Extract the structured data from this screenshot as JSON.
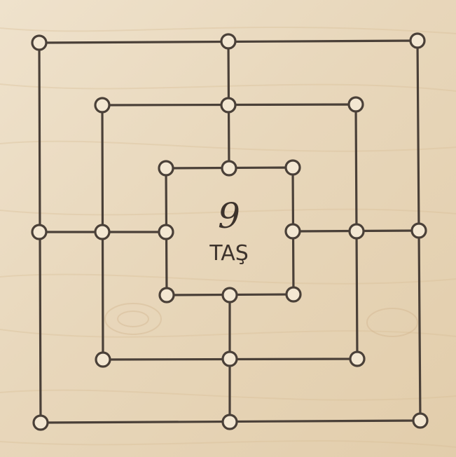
{
  "game": {
    "title_number": "9",
    "title_label": "TAŞ"
  },
  "colors": {
    "wood_light": "#efe2cc",
    "wood_mid": "#e6d3b4",
    "wood_dark": "#dbc29d",
    "line": "#4a4038",
    "point_fill": "#f3e7d2",
    "text": "#3d332c"
  }
}
